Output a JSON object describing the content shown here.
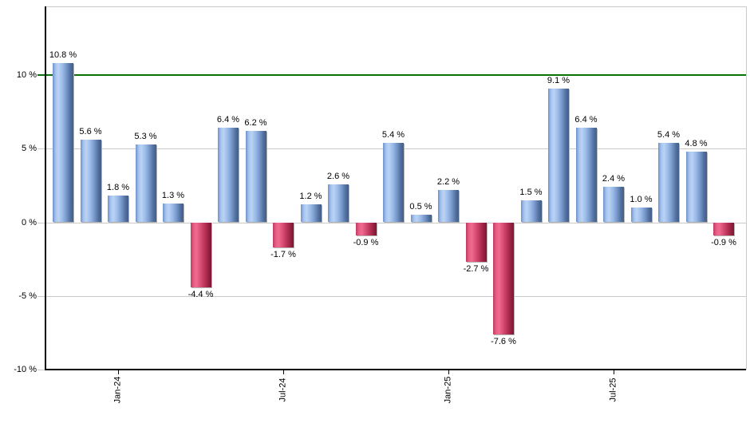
{
  "chart_data": {
    "type": "bar",
    "title": "",
    "xlabel": "",
    "ylabel": "",
    "ylim": [
      -10,
      14.65
    ],
    "grid": true,
    "legend_position": "none",
    "y_ticks": [
      {
        "value": 10,
        "label": "10 %"
      },
      {
        "value": 5,
        "label": "5 %"
      },
      {
        "value": 0,
        "label": "0 %"
      },
      {
        "value": -5,
        "label": "-5 %"
      },
      {
        "value": -10,
        "label": "-10 %"
      }
    ],
    "x_ticks": [
      {
        "bar_index": 2,
        "label": "Jan-24"
      },
      {
        "bar_index": 8,
        "label": "Jul-24"
      },
      {
        "bar_index": 14,
        "label": "Jan-25"
      },
      {
        "bar_index": 20,
        "label": "Jul-25"
      }
    ],
    "reference_line": {
      "value": 10,
      "color": "#077307"
    },
    "bars": [
      {
        "value": 10.8,
        "label": "10.8 %"
      },
      {
        "value": 5.6,
        "label": "5.6 %"
      },
      {
        "value": 1.8,
        "label": "1.8 %"
      },
      {
        "value": 5.3,
        "label": "5.3 %"
      },
      {
        "value": 1.3,
        "label": "1.3 %"
      },
      {
        "value": -4.4,
        "label": "-4.4 %"
      },
      {
        "value": 6.4,
        "label": "6.4 %"
      },
      {
        "value": 6.2,
        "label": "6.2 %"
      },
      {
        "value": -1.7,
        "label": "-1.7 %"
      },
      {
        "value": 1.2,
        "label": "1.2 %"
      },
      {
        "value": 2.6,
        "label": "2.6 %"
      },
      {
        "value": -0.9,
        "label": "-0.9 %"
      },
      {
        "value": 5.4,
        "label": "5.4 %"
      },
      {
        "value": 0.5,
        "label": "0.5 %"
      },
      {
        "value": 2.2,
        "label": "2.2 %"
      },
      {
        "value": -2.7,
        "label": "-2.7 %"
      },
      {
        "value": -7.6,
        "label": "-7.6 %"
      },
      {
        "value": 1.5,
        "label": "1.5 %"
      },
      {
        "value": 9.1,
        "label": "9.1 %"
      },
      {
        "value": 6.4,
        "label": "6.4 %"
      },
      {
        "value": 2.4,
        "label": "2.4 %"
      },
      {
        "value": 1.0,
        "label": "1.0 %"
      },
      {
        "value": 5.4,
        "label": "5.4 %"
      },
      {
        "value": 4.8,
        "label": "4.8 %"
      },
      {
        "value": -0.9,
        "label": "-0.9 %"
      }
    ],
    "colors": {
      "positive_bar": "#8fb1e3",
      "negative_bar": "#d94d74",
      "reference_line": "#077307",
      "gridline": "#c9c9c9",
      "axis": "#000000",
      "label_text": "#000000",
      "background": "#ffffff"
    }
  }
}
